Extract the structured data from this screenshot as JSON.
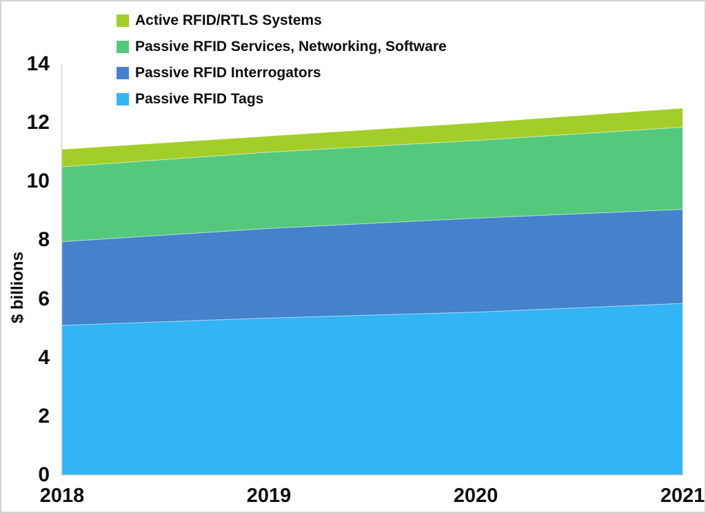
{
  "chart_data": {
    "type": "area",
    "stacked": true,
    "title": "",
    "xlabel": "",
    "ylabel": "$ billions",
    "x": [
      "2018",
      "2019",
      "2020",
      "2021"
    ],
    "series": [
      {
        "name": "Passive RFID Tags",
        "color": "#33B4F4",
        "values": [
          5.1,
          5.35,
          5.55,
          5.85
        ]
      },
      {
        "name": "Passive RFID Interrogators",
        "color": "#4482CC",
        "values": [
          2.85,
          3.05,
          3.2,
          3.2
        ]
      },
      {
        "name": "Passive RFID Services, Networking, Software",
        "color": "#54C97D",
        "values": [
          2.55,
          2.6,
          2.65,
          2.8
        ]
      },
      {
        "name": "Active RFID/RTLS Systems",
        "color": "#A3CE29",
        "values": [
          0.6,
          0.55,
          0.6,
          0.65
        ]
      }
    ],
    "stacked_totals": [
      11.1,
      11.55,
      12.0,
      12.5
    ],
    "ylim": [
      0,
      14
    ],
    "ytick_step": 2,
    "yticks": [
      "0",
      "2",
      "4",
      "6",
      "8",
      "10",
      "12",
      "14"
    ],
    "grid": false,
    "legend_position": "top-left",
    "legend": [
      {
        "label": "Active RFID/RTLS Systems",
        "color": "#A3CE29"
      },
      {
        "label": "Passive RFID Services, Networking, Software",
        "color": "#54C97D"
      },
      {
        "label": "Passive RFID Interrogators",
        "color": "#4482CC"
      },
      {
        "label": "Passive RFID Tags",
        "color": "#33B4F4"
      }
    ],
    "axis_line_color": "#d6d6d6"
  }
}
